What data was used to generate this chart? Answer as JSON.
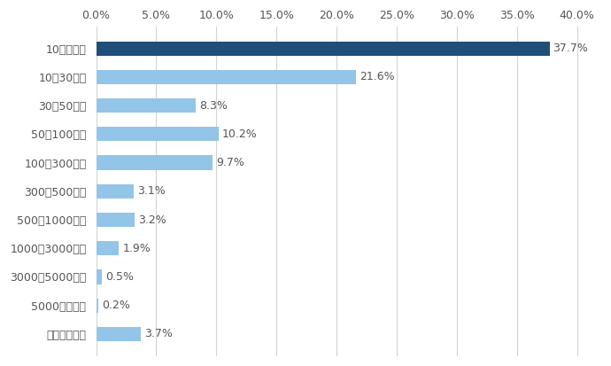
{
  "categories": [
    "10万円未満",
    "10〜30万円",
    "30〜50万円",
    "50〜100万円",
    "100〜300万円",
    "300〜500万円",
    "500〜1000万円",
    "1000〜3000万円",
    "3000〜5000万円",
    "5000万円以上",
    "答えたくない"
  ],
  "values": [
    37.7,
    21.6,
    8.3,
    10.2,
    9.7,
    3.1,
    3.2,
    1.9,
    0.5,
    0.2,
    3.7
  ],
  "labels": [
    "37.7%",
    "21.6%",
    "8.3%",
    "10.2%",
    "9.7%",
    "3.1%",
    "3.2%",
    "1.9%",
    "0.5%",
    "0.2%",
    "3.7%"
  ],
  "bar_colors": [
    "#1f4e79",
    "#92c5e8",
    "#92c5e8",
    "#92c5e8",
    "#92c5e8",
    "#92c5e8",
    "#92c5e8",
    "#92c5e8",
    "#92c5e8",
    "#92c5e8",
    "#92c5e8"
  ],
  "xlim": [
    0,
    42.0
  ],
  "xticks": [
    0.0,
    5.0,
    10.0,
    15.0,
    20.0,
    25.0,
    30.0,
    35.0,
    40.0
  ],
  "xtick_labels": [
    "0.0%",
    "5.0%",
    "10.0%",
    "15.0%",
    "20.0%",
    "25.0%",
    "30.0%",
    "35.0%",
    "40.0%"
  ],
  "background_color": "#ffffff",
  "grid_color": "#d3d3d3",
  "label_fontsize": 9,
  "tick_fontsize": 9,
  "bar_height": 0.5
}
